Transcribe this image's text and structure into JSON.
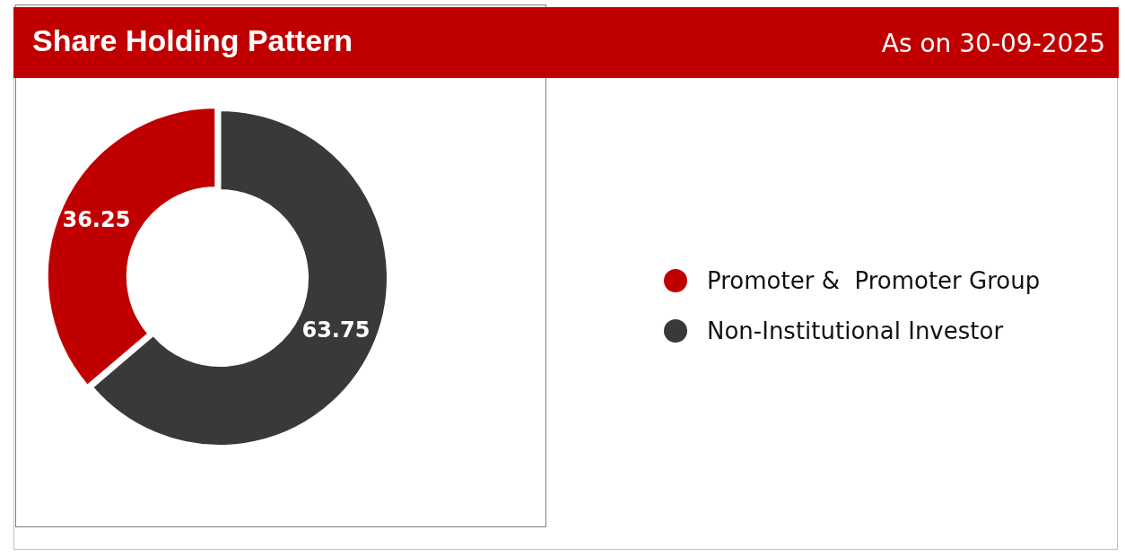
{
  "chart_data": {
    "type": "donut",
    "title": "Share Holding Pattern",
    "subtitle": "As on 30-09-2025",
    "categories": [
      "Promoter &  Promoter Group",
      "Non-Institutional Investor"
    ],
    "values": [
      36.25,
      63.75
    ],
    "colors": [
      "#c00000",
      "#3a393a"
    ],
    "data_labels": true,
    "legend": "right"
  }
}
